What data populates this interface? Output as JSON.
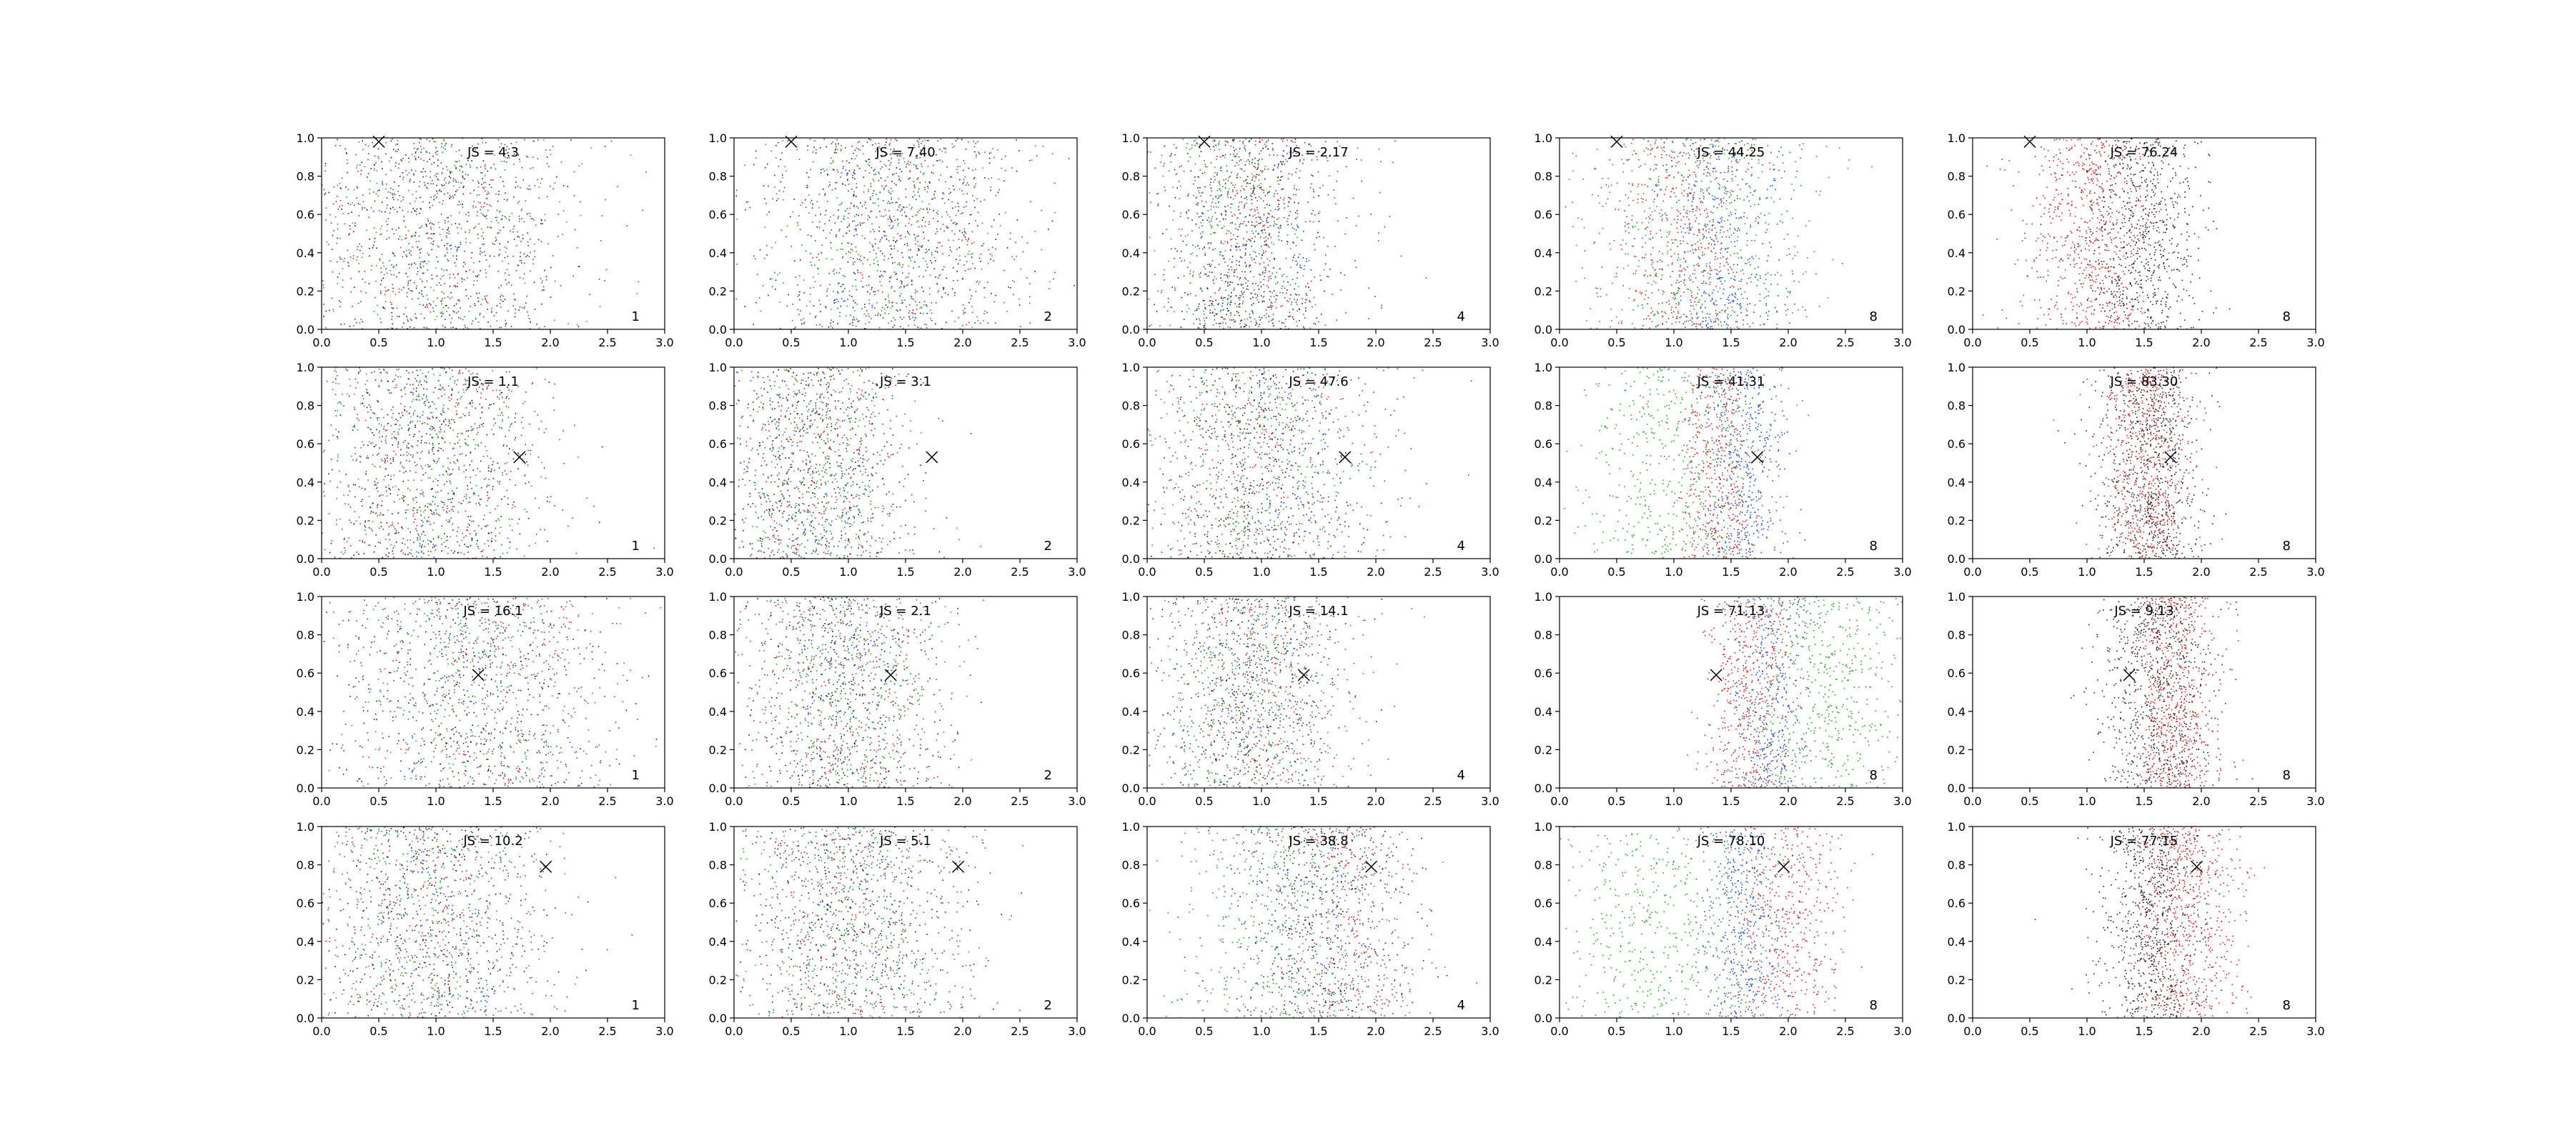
{
  "chart_data": {
    "type": "scatter",
    "layout": {
      "rows": 4,
      "cols": 5
    },
    "xlim": [
      0,
      3
    ],
    "ylim": [
      0,
      1
    ],
    "x_ticks": [
      "0.0",
      "0.5",
      "1.0",
      "1.5",
      "2.0",
      "2.5",
      "3.0"
    ],
    "y_ticks": [
      "0.0",
      "0.2",
      "0.4",
      "0.6",
      "0.8",
      "1.0"
    ],
    "colors": {
      "red": "#d62728",
      "blue": "#1f4fd8",
      "green": "#2ca02c",
      "black": "#222222"
    },
    "panels": [
      {
        "row": 0,
        "col": 0,
        "js": "JS = 4.3",
        "n": "1",
        "marker": [
          0.5,
          0.98
        ],
        "clusters": [
          {
            "color": "red",
            "cx": 1.0,
            "sx": 0.6
          },
          {
            "color": "blue",
            "cx": 1.05,
            "sx": 0.65
          },
          {
            "color": "green",
            "cx": 0.95,
            "sx": 0.6
          },
          {
            "color": "black",
            "cx": 1.0,
            "sx": 0.6
          }
        ]
      },
      {
        "row": 0,
        "col": 1,
        "js": "JS = 7.40",
        "n": "2",
        "marker": [
          0.5,
          0.98
        ],
        "clusters": [
          {
            "color": "red",
            "cx": 1.6,
            "sx": 0.5
          },
          {
            "color": "blue",
            "cx": 1.2,
            "sx": 0.6
          },
          {
            "color": "green",
            "cx": 1.3,
            "sx": 0.6
          },
          {
            "color": "black",
            "cx": 1.3,
            "sx": 0.6
          }
        ]
      },
      {
        "row": 0,
        "col": 2,
        "js": "JS = 2.17",
        "n": "4",
        "marker": [
          0.5,
          0.98
        ],
        "clusters": [
          {
            "color": "red",
            "cx": 0.9,
            "sx": 0.35
          },
          {
            "color": "blue",
            "cx": 1.0,
            "sx": 0.5
          },
          {
            "color": "green",
            "cx": 0.75,
            "sx": 0.35
          },
          {
            "color": "black",
            "cx": 0.85,
            "sx": 0.35
          }
        ]
      },
      {
        "row": 0,
        "col": 3,
        "js": "JS = 44.25",
        "n": "8",
        "marker": [
          0.5,
          0.98
        ],
        "clusters": [
          {
            "color": "red",
            "cx": 1.05,
            "sx": 0.3
          },
          {
            "color": "blue",
            "cx": 1.45,
            "sx": 0.3
          },
          {
            "color": "green",
            "cx": 1.2,
            "sx": 0.55
          }
        ]
      },
      {
        "row": 0,
        "col": 4,
        "js": "JS = 76.24",
        "n": "8",
        "marker": [
          0.5,
          0.98
        ],
        "clusters": [
          {
            "color": "red",
            "cx": 1.05,
            "sx": 0.3
          },
          {
            "color": "black",
            "cx": 1.45,
            "sx": 0.28
          }
        ]
      },
      {
        "row": 1,
        "col": 0,
        "js": "JS = 1.1",
        "n": "1",
        "marker": [
          1.73,
          0.53
        ],
        "clusters": [
          {
            "color": "red",
            "cx": 0.9,
            "sx": 0.5
          },
          {
            "color": "blue",
            "cx": 1.0,
            "sx": 0.55
          },
          {
            "color": "green",
            "cx": 0.9,
            "sx": 0.5
          },
          {
            "color": "black",
            "cx": 0.9,
            "sx": 0.5
          }
        ]
      },
      {
        "row": 1,
        "col": 1,
        "js": "JS = 3.1",
        "n": "2",
        "marker": [
          1.73,
          0.53
        ],
        "clusters": [
          {
            "color": "red",
            "cx": 0.75,
            "sx": 0.4
          },
          {
            "color": "blue",
            "cx": 0.7,
            "sx": 0.45
          },
          {
            "color": "green",
            "cx": 0.7,
            "sx": 0.4
          },
          {
            "color": "black",
            "cx": 0.7,
            "sx": 0.4
          }
        ]
      },
      {
        "row": 1,
        "col": 2,
        "js": "JS = 47.6",
        "n": "4",
        "marker": [
          1.73,
          0.53
        ],
        "clusters": [
          {
            "color": "red",
            "cx": 0.9,
            "sx": 0.45
          },
          {
            "color": "blue",
            "cx": 1.3,
            "sx": 0.5
          },
          {
            "color": "green",
            "cx": 0.8,
            "sx": 0.45
          },
          {
            "color": "black",
            "cx": 0.95,
            "sx": 0.45
          }
        ]
      },
      {
        "row": 1,
        "col": 3,
        "js": "JS = 41.31",
        "n": "8",
        "marker": [
          1.73,
          0.53
        ],
        "clusters": [
          {
            "color": "red",
            "cx": 1.4,
            "sx": 0.18
          },
          {
            "color": "blue",
            "cx": 1.6,
            "sx": 0.2
          },
          {
            "color": "green",
            "cx": 0.9,
            "sx": 0.4
          }
        ]
      },
      {
        "row": 1,
        "col": 4,
        "js": "JS = 83.30",
        "n": "8",
        "marker": [
          1.73,
          0.53
        ],
        "clusters": [
          {
            "color": "red",
            "cx": 1.5,
            "sx": 0.2
          },
          {
            "color": "black",
            "cx": 1.55,
            "sx": 0.22
          }
        ]
      },
      {
        "row": 2,
        "col": 0,
        "js": "JS = 16.1",
        "n": "1",
        "marker": [
          1.37,
          0.59
        ],
        "clusters": [
          {
            "color": "red",
            "cx": 1.5,
            "sx": 0.6
          },
          {
            "color": "blue",
            "cx": 1.2,
            "sx": 0.6
          },
          {
            "color": "green",
            "cx": 1.3,
            "sx": 0.6
          },
          {
            "color": "black",
            "cx": 1.3,
            "sx": 0.6
          }
        ]
      },
      {
        "row": 2,
        "col": 1,
        "js": "JS = 2.1",
        "n": "2",
        "marker": [
          1.37,
          0.59
        ],
        "clusters": [
          {
            "color": "red",
            "cx": 1.0,
            "sx": 0.45
          },
          {
            "color": "blue",
            "cx": 0.95,
            "sx": 0.45
          },
          {
            "color": "green",
            "cx": 0.95,
            "sx": 0.45
          },
          {
            "color": "black",
            "cx": 0.95,
            "sx": 0.45
          }
        ]
      },
      {
        "row": 2,
        "col": 2,
        "js": "JS = 14.1",
        "n": "4",
        "marker": [
          1.37,
          0.59
        ],
        "clusters": [
          {
            "color": "red",
            "cx": 1.0,
            "sx": 0.4
          },
          {
            "color": "blue",
            "cx": 0.8,
            "sx": 0.45
          },
          {
            "color": "green",
            "cx": 0.9,
            "sx": 0.45
          },
          {
            "color": "black",
            "cx": 0.9,
            "sx": 0.4
          }
        ]
      },
      {
        "row": 2,
        "col": 3,
        "js": "JS = 71.13",
        "n": "8",
        "marker": [
          1.37,
          0.59
        ],
        "clusters": [
          {
            "color": "red",
            "cx": 1.65,
            "sx": 0.2
          },
          {
            "color": "blue",
            "cx": 1.85,
            "sx": 0.18
          },
          {
            "color": "green",
            "cx": 2.4,
            "sx": 0.35
          }
        ]
      },
      {
        "row": 2,
        "col": 4,
        "js": "JS = 9.13",
        "n": "8",
        "marker": [
          1.37,
          0.59
        ],
        "clusters": [
          {
            "color": "red",
            "cx": 1.75,
            "sx": 0.2
          },
          {
            "color": "black",
            "cx": 1.6,
            "sx": 0.25
          }
        ]
      },
      {
        "row": 3,
        "col": 0,
        "js": "JS = 10.2",
        "n": "1",
        "marker": [
          1.96,
          0.79
        ],
        "clusters": [
          {
            "color": "red",
            "cx": 0.9,
            "sx": 0.5
          },
          {
            "color": "blue",
            "cx": 1.1,
            "sx": 0.55
          },
          {
            "color": "green",
            "cx": 0.85,
            "sx": 0.5
          },
          {
            "color": "black",
            "cx": 0.9,
            "sx": 0.5
          }
        ]
      },
      {
        "row": 3,
        "col": 1,
        "js": "JS = 5.1",
        "n": "2",
        "marker": [
          1.96,
          0.79
        ],
        "clusters": [
          {
            "color": "red",
            "cx": 1.0,
            "sx": 0.5
          },
          {
            "color": "blue",
            "cx": 1.1,
            "sx": 0.5
          },
          {
            "color": "green",
            "cx": 0.95,
            "sx": 0.5
          },
          {
            "color": "black",
            "cx": 1.0,
            "sx": 0.5
          }
        ]
      },
      {
        "row": 3,
        "col": 2,
        "js": "JS = 38.8",
        "n": "4",
        "marker": [
          1.96,
          0.79
        ],
        "clusters": [
          {
            "color": "red",
            "cx": 1.75,
            "sx": 0.3
          },
          {
            "color": "blue",
            "cx": 1.4,
            "sx": 0.45
          },
          {
            "color": "green",
            "cx": 1.1,
            "sx": 0.5
          },
          {
            "color": "black",
            "cx": 1.5,
            "sx": 0.4
          }
        ]
      },
      {
        "row": 3,
        "col": 3,
        "js": "JS = 78.10",
        "n": "8",
        "marker": [
          1.96,
          0.79
        ],
        "clusters": [
          {
            "color": "red",
            "cx": 2.0,
            "sx": 0.25
          },
          {
            "color": "blue",
            "cx": 1.6,
            "sx": 0.2
          },
          {
            "color": "green",
            "cx": 0.8,
            "sx": 0.45
          }
        ]
      },
      {
        "row": 3,
        "col": 4,
        "js": "JS = 77.15",
        "n": "8",
        "marker": [
          1.96,
          0.79
        ],
        "clusters": [
          {
            "color": "red",
            "cx": 1.85,
            "sx": 0.25
          },
          {
            "color": "black",
            "cx": 1.55,
            "sx": 0.22
          }
        ]
      }
    ]
  }
}
